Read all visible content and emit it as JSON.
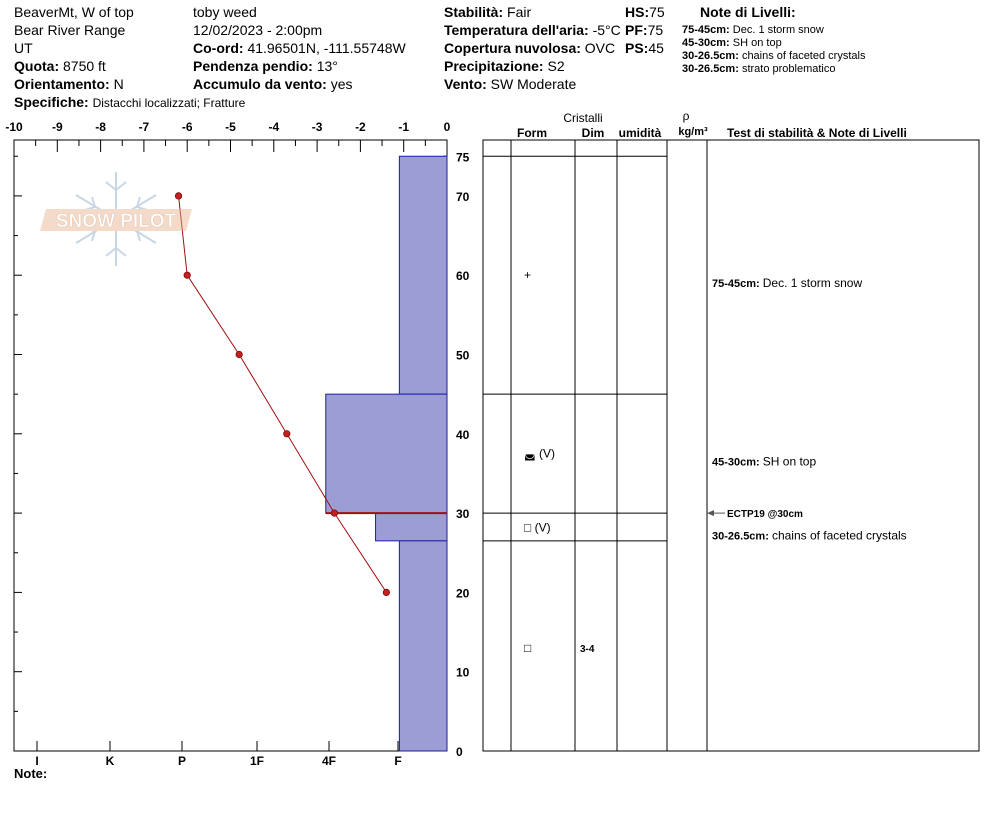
{
  "header": {
    "location": "BeaverMt, W of top",
    "range": "Bear River Range",
    "state": "UT",
    "observer": "toby weed",
    "datetime": "12/02/2023 - 2:00pm",
    "elevation_label": "Quota:",
    "elevation_value": "8750 ft",
    "aspect_label": "Orientamento:",
    "aspect_value": "N",
    "specifics_label": "Specifiche:",
    "specifics_value": "Distacchi localizzati;  Fratture",
    "coord_label": "Co-ord:",
    "coord_value": "41.96501N, -111.55748W",
    "slope_label": "Pendenza pendio:",
    "slope_value": "13°",
    "wind_load_label": "Accumulo da vento:",
    "wind_load_value": "yes",
    "stability_label": "Stabilità:",
    "stability_value": "Fair",
    "air_temp_label": "Temperatura dell'aria:",
    "air_temp_value": "-5°C",
    "cloud_label": "Copertura nuvolosa:",
    "cloud_value": "OVC",
    "precip_label": "Precipitazione:",
    "precip_value": "S2",
    "wind_label": "Vento:",
    "wind_value": "SW Moderate",
    "hs_label": "HS:",
    "hs_value": "75",
    "pf_label": "PF:",
    "pf_value": "75",
    "ps_label": "PS:",
    "ps_value": "45"
  },
  "layer_notes_header": {
    "title": "Note di Livelli:",
    "items": [
      {
        "range": "75-45cm:",
        "text": "Dec. 1 storm snow"
      },
      {
        "range": "45-30cm:",
        "text": "SH on top"
      },
      {
        "range": "30-26.5cm:",
        "text": "chains of faceted crystals"
      },
      {
        "range": "30-26.5cm:",
        "text": "strato problematico"
      }
    ]
  },
  "logo": {
    "text": "SNOW PILOT"
  },
  "notes_label": "Note:",
  "colors": {
    "hardness_fill": "#9d9dd6",
    "hardness_stroke": "#1c1caa",
    "temp_line": "#a01010"
  },
  "chart_data": {
    "type": "snow_profile",
    "temperature_axis": {
      "ticks": [
        "-10",
        "-9",
        "-8",
        "-7",
        "-6",
        "-5",
        "-4",
        "-3",
        "-2",
        "-1",
        "0"
      ],
      "min": -10,
      "max": 0
    },
    "depth_axis": {
      "ticks": [
        "0",
        "10",
        "20",
        "30",
        "40",
        "50",
        "60",
        "70",
        "75"
      ],
      "min": 0,
      "max": 75
    },
    "hardness_axis": {
      "labels": [
        "I",
        "K",
        "P",
        "1F",
        "4F",
        "F"
      ]
    },
    "temperature_profile": [
      {
        "depth": 70,
        "temp": -6.2
      },
      {
        "depth": 60,
        "temp": -6.0
      },
      {
        "depth": 50,
        "temp": -4.8
      },
      {
        "depth": 40,
        "temp": -3.7
      },
      {
        "depth": 30,
        "temp": -2.6
      },
      {
        "depth": 20,
        "temp": -1.4
      }
    ],
    "hardness_layers": [
      {
        "top": 75,
        "bottom": 45,
        "hardness_temp": -1.1
      },
      {
        "top": 45,
        "bottom": 30,
        "hardness_temp": -2.8
      },
      {
        "top": 30,
        "bottom": 26.5,
        "hardness_temp": -1.65
      },
      {
        "top": 26.5,
        "bottom": 0,
        "hardness_temp": -1.1
      }
    ],
    "problem_layer_depth": 30,
    "layer_boundaries": [
      75,
      45,
      30,
      26.5
    ],
    "columns": {
      "crystals_title": "Cristalli",
      "form": "Form",
      "dim": "Dim",
      "humidity": "umidità",
      "density_symbol": "ρ",
      "density_unit": "kg/m³",
      "stability": "Test di stabilità & Note di Livelli"
    },
    "crystal_entries": [
      {
        "depth": 60,
        "form": "+",
        "size": ""
      },
      {
        "depth": 37.5,
        "form": "◛ (V)",
        "size": ""
      },
      {
        "depth": 28.2,
        "form": "□ (V)",
        "size": ""
      },
      {
        "depth": 13,
        "form": "□",
        "size": "3-4"
      }
    ],
    "stability_tests": [
      {
        "depth": 30,
        "text": "ECTP19 @30cm"
      }
    ],
    "layer_notes": [
      {
        "depth": 59,
        "range": "75-45cm:",
        "text": "Dec. 1 storm snow"
      },
      {
        "depth": 36.5,
        "range": "45-30cm:",
        "text": "SH on top"
      },
      {
        "depth": 27.2,
        "range": "30-26.5cm:",
        "text": "chains of faceted crystals"
      }
    ]
  }
}
